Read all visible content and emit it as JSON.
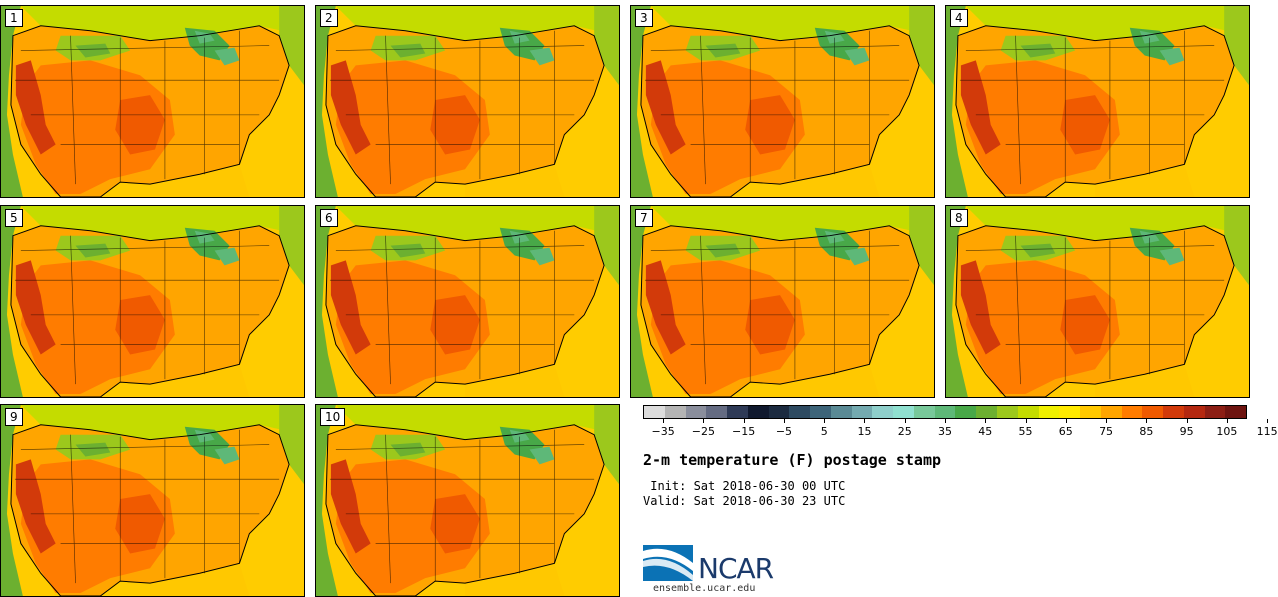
{
  "figure": {
    "title": "2-m temperature (F) postage stamp",
    "init": " Init: Sat 2018-06-30 00 UTC",
    "valid": "Valid: Sat 2018-06-30 23 UTC",
    "logo_text": "NCAR",
    "url": "ensemble.ucar.edu"
  },
  "members": [
    "1",
    "2",
    "3",
    "4",
    "5",
    "6",
    "7",
    "8",
    "9",
    "10"
  ],
  "colorbar": {
    "colors": [
      "#dcdcdc",
      "#b4b4b4",
      "#8a8e9c",
      "#646b82",
      "#2e3a56",
      "#10192e",
      "#1c2b40",
      "#2d4a61",
      "#3d6479",
      "#5a8a95",
      "#74aab0",
      "#8fcfcb",
      "#90e0d0",
      "#78c89a",
      "#5eb878",
      "#48a848",
      "#6cb030",
      "#9cc81c",
      "#c4dc00",
      "#f0f000",
      "#ffea00",
      "#ffc800",
      "#ffa500",
      "#ff7c00",
      "#f05a00",
      "#d23a0a",
      "#b42810",
      "#8c1e14",
      "#6e1410"
    ],
    "tick_labels": [
      "−35",
      "−25",
      "−15",
      "−5",
      "5",
      "15",
      "25",
      "35",
      "45",
      "55",
      "65",
      "75",
      "85",
      "95",
      "105",
      "115"
    ]
  }
}
